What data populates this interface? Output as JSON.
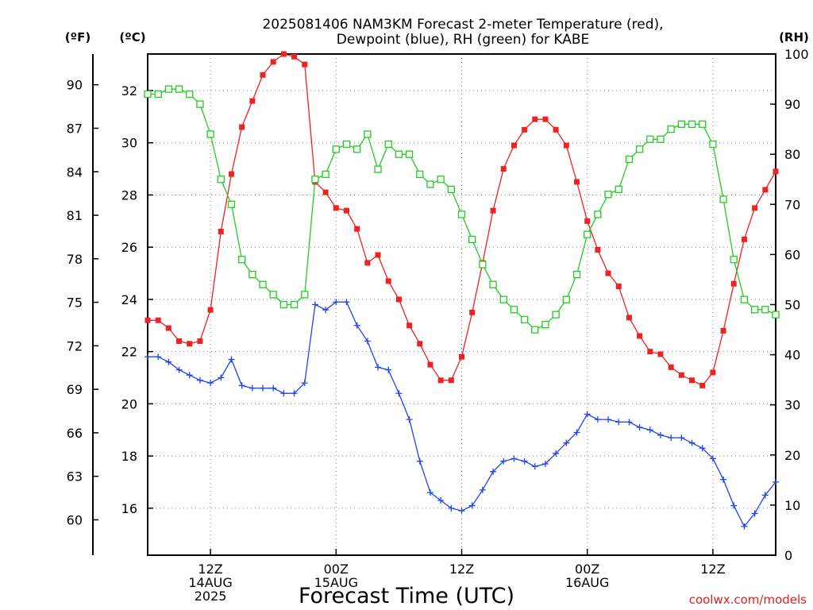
{
  "chart_data": {
    "type": "line",
    "title_line1": "2025081406 NAM3KM Forecast 2-meter Temperature (red),",
    "title_line2": "Dewpoint (blue), RH (green) for KABE",
    "xlabel": "Forecast Time (UTC)",
    "credit": "coolwx.com/models",
    "axes": {
      "fahrenheit": {
        "unit_label": "(ºF)",
        "ticks": [
          60,
          63,
          66,
          69,
          72,
          75,
          78,
          81,
          84,
          87,
          90
        ]
      },
      "celsius": {
        "unit_label": "(ºC)",
        "ticks": [
          16,
          18,
          20,
          22,
          24,
          26,
          28,
          30,
          32
        ],
        "ylim": [
          14.2,
          33.4
        ]
      },
      "rh": {
        "unit_label": "(RH)",
        "ticks": [
          0,
          10,
          20,
          30,
          40,
          50,
          60,
          70,
          80,
          90,
          100
        ],
        "ylim": [
          0,
          100
        ]
      }
    },
    "x_axis": {
      "xlim": [
        6,
        66
      ],
      "ticks": [
        {
          "x": 12,
          "lines": [
            "12Z",
            "14AUG",
            "2025"
          ]
        },
        {
          "x": 24,
          "lines": [
            "00Z",
            "15AUG"
          ]
        },
        {
          "x": 36,
          "lines": [
            "12Z"
          ]
        },
        {
          "x": 48,
          "lines": [
            "00Z",
            "16AUG"
          ]
        },
        {
          "x": 60,
          "lines": [
            "12Z"
          ]
        }
      ]
    },
    "grid": true,
    "x": [
      6,
      7,
      8,
      9,
      10,
      11,
      12,
      13,
      14,
      15,
      16,
      17,
      18,
      19,
      20,
      21,
      22,
      23,
      24,
      25,
      26,
      27,
      28,
      29,
      30,
      31,
      32,
      33,
      34,
      35,
      36,
      37,
      38,
      39,
      40,
      41,
      42,
      43,
      44,
      45,
      46,
      47,
      48,
      49,
      50,
      51,
      52,
      53,
      54,
      55,
      56,
      57,
      58,
      59,
      60,
      61,
      62,
      63,
      64,
      65,
      66
    ],
    "series": [
      {
        "name": "Temperature (red)",
        "color": "#ee2222",
        "marker": "filled-square",
        "unit": "C",
        "values": [
          23.2,
          23.2,
          22.9,
          22.4,
          22.3,
          22.4,
          23.6,
          26.6,
          28.8,
          30.6,
          31.6,
          32.6,
          33.1,
          33.4,
          33.3,
          33.0,
          28.5,
          28.1,
          27.5,
          27.4,
          26.7,
          25.4,
          25.7,
          24.7,
          24.0,
          23.0,
          22.3,
          21.5,
          20.9,
          20.9,
          21.8,
          23.5,
          25.4,
          27.4,
          29.0,
          29.9,
          30.5,
          30.9,
          30.9,
          30.5,
          29.9,
          28.5,
          27.0,
          25.9,
          25.0,
          24.5,
          23.3,
          22.6,
          22.0,
          21.9,
          21.4,
          21.1,
          20.9,
          20.7,
          21.2,
          22.8,
          24.6,
          26.3,
          27.5,
          28.2,
          28.9
        ]
      },
      {
        "name": "Dewpoint (blue)",
        "color": "#2244ee",
        "marker": "plus",
        "unit": "C",
        "values": [
          21.8,
          21.8,
          21.6,
          21.3,
          21.1,
          20.9,
          20.8,
          21.0,
          21.7,
          20.7,
          20.6,
          20.6,
          20.6,
          20.4,
          20.4,
          20.8,
          23.8,
          23.6,
          23.9,
          23.9,
          23.0,
          22.4,
          21.4,
          21.3,
          20.4,
          19.4,
          17.8,
          16.6,
          16.3,
          16.0,
          15.9,
          16.1,
          16.7,
          17.4,
          17.8,
          17.9,
          17.8,
          17.6,
          17.7,
          18.1,
          18.5,
          18.9,
          19.6,
          19.4,
          19.4,
          19.3,
          19.3,
          19.1,
          19.0,
          18.8,
          18.7,
          18.7,
          18.5,
          18.3,
          17.9,
          17.1,
          16.1,
          15.3,
          15.8,
          16.5,
          17.0
        ]
      },
      {
        "name": "RH (green)",
        "color": "#22cc22",
        "marker": "open-square",
        "unit": "%",
        "values": [
          92,
          92,
          93,
          93,
          92,
          90,
          84,
          75,
          70,
          59,
          56,
          54,
          52,
          50,
          50,
          52,
          75,
          76,
          81,
          82,
          81,
          84,
          77,
          82,
          80,
          80,
          76,
          74,
          75,
          73,
          68,
          63,
          58,
          54,
          51,
          49,
          47,
          45,
          46,
          48,
          51,
          56,
          64,
          68,
          72,
          73,
          79,
          81,
          83,
          83,
          85,
          86,
          86,
          86,
          82,
          71,
          59,
          51,
          49,
          49,
          48
        ]
      }
    ]
  }
}
